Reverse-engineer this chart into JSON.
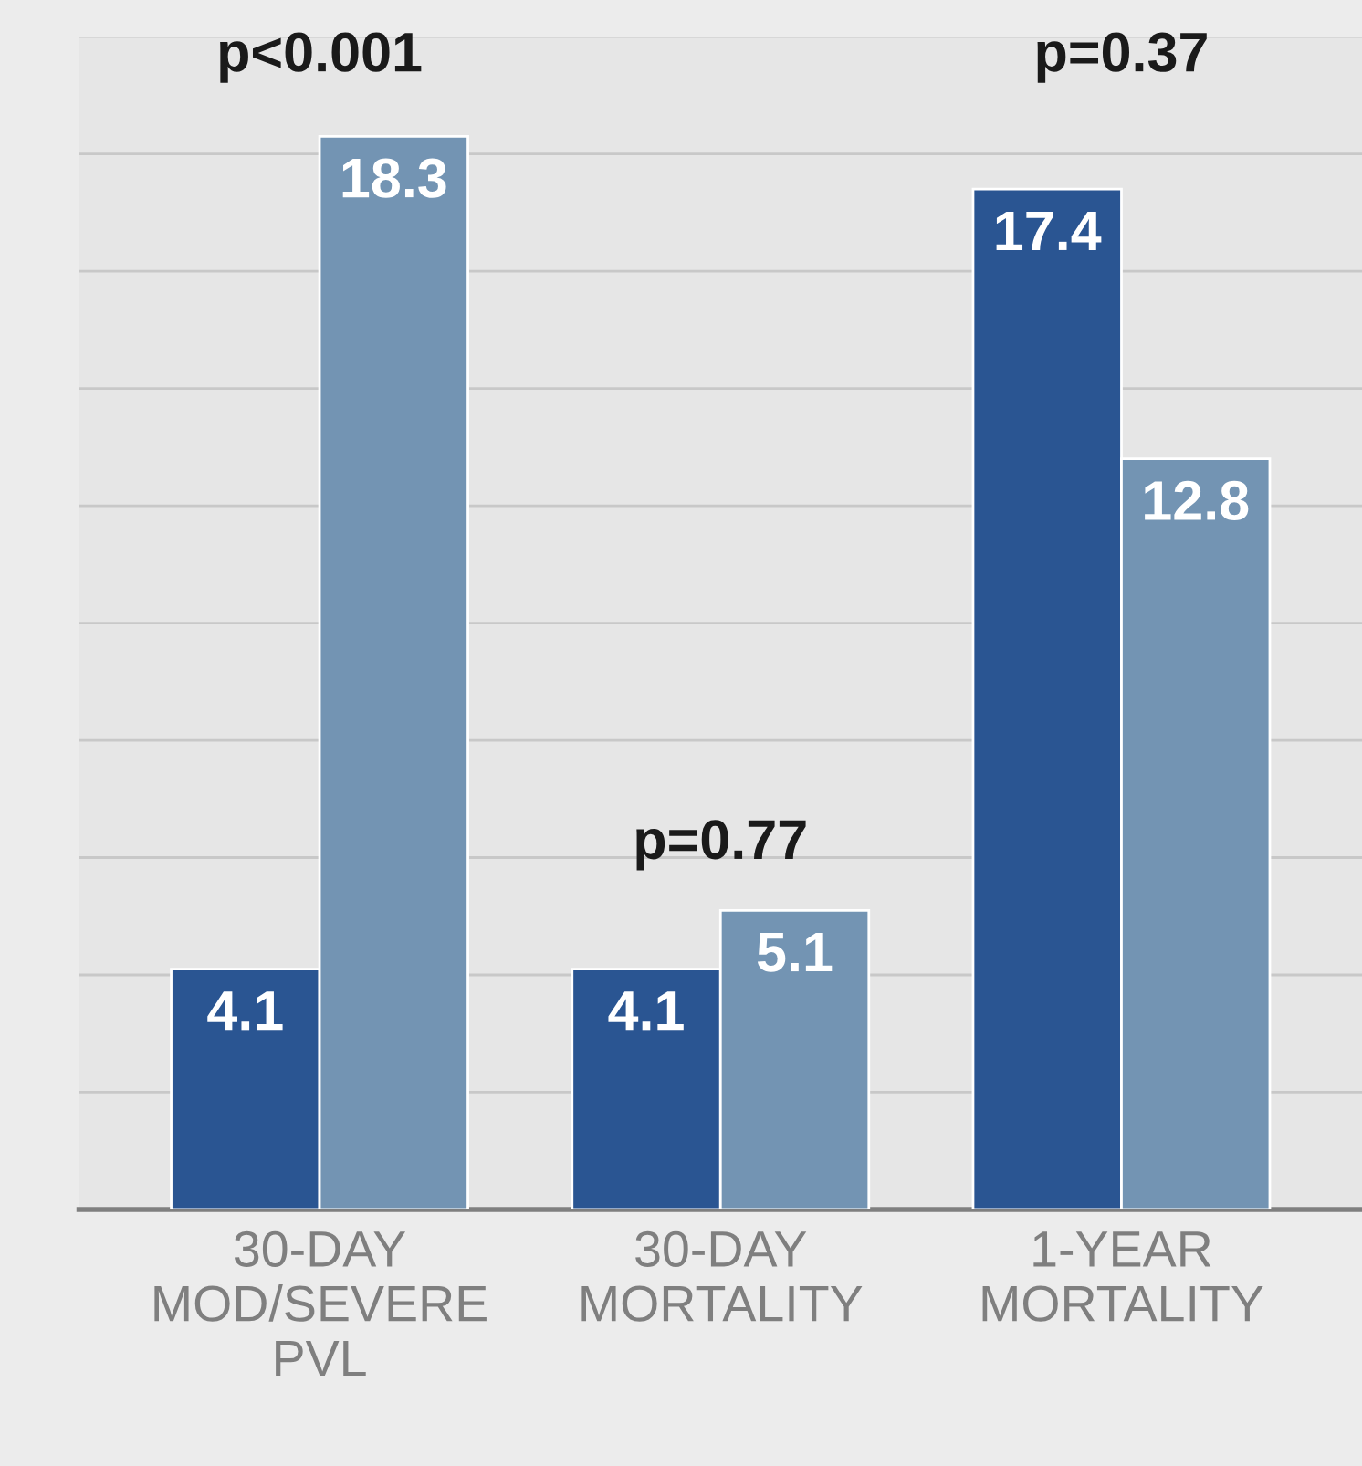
{
  "chart_data": {
    "type": "bar",
    "categories": [
      "30-DAY\nMOD/SEVERE\nPVL",
      "30-DAY\nMORTALITY",
      "1-YEAR\nMORTALITY"
    ],
    "series": [
      {
        "color": "#2a5592",
        "values": [
          4.1,
          4.1,
          17.4
        ]
      },
      {
        "color": "#7394b3",
        "values": [
          18.3,
          5.1,
          12.8
        ]
      }
    ],
    "data_labels": true,
    "ylim": [
      0,
      20
    ],
    "yticks": [
      {
        "value": 0,
        "label": null
      },
      {
        "value": 2,
        "label": null
      },
      {
        "value": 4,
        "label": null
      },
      {
        "value": 6,
        "label": null
      },
      {
        "value": 8,
        "label": null
      },
      {
        "value": 10,
        "label": null
      },
      {
        "value": 12,
        "label": null
      },
      {
        "value": 14,
        "label": null
      },
      {
        "value": 16,
        "label": null
      },
      {
        "value": 18,
        "label": null
      },
      {
        "value": 20,
        "label": null
      }
    ],
    "tick_labels": "x",
    "grid": "y",
    "annotations": [
      "p<0.001",
      "p=0.77",
      "p=0.37"
    ]
  }
}
